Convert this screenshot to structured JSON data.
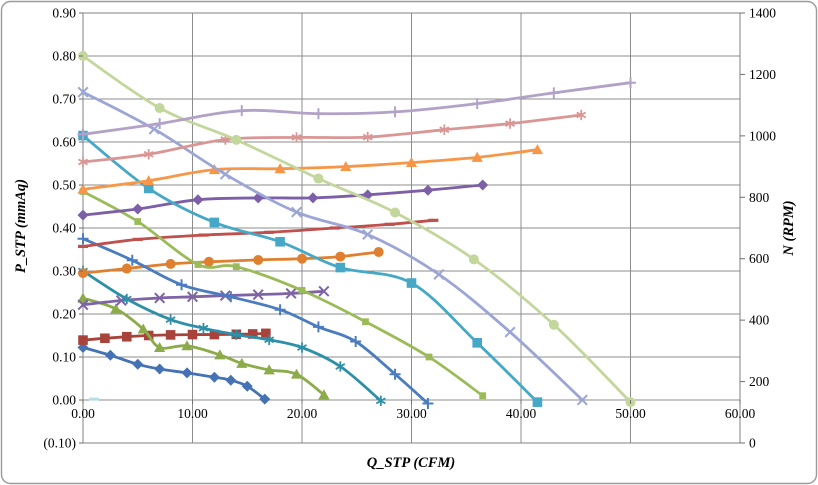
{
  "chart": {
    "background": "#FFFFFF",
    "border_color": "#9A9A9A",
    "grid_color": "#8C8C8C",
    "tick_color": "#6E6E6E",
    "font_color": "#000000",
    "negative_label_color": "#FF0000",
    "x_axis": {
      "title": "Q_STP (CFM)",
      "min": 0,
      "max": 60,
      "tick_step": 10,
      "tick_labels": [
        "0.00",
        "10.00",
        "20.00",
        "30.00",
        "40.00",
        "50.00",
        "60.00"
      ]
    },
    "y_left_axis": {
      "title": "P_STP (mmAq)",
      "min": -0.1,
      "max": 0.9,
      "tick_step": 0.1,
      "tick_labels": [
        "0.90",
        "0.80",
        "0.70",
        "0.60",
        "0.50",
        "0.40",
        "0.30",
        "0.20",
        "0.10",
        "0.00",
        "(0.10)"
      ]
    },
    "y_right_axis": {
      "title": "N (RPM)",
      "min": 0,
      "max": 1400,
      "tick_step": 200,
      "tick_labels": [
        "1400",
        "1200",
        "1000",
        "800",
        "600",
        "400",
        "200",
        "0"
      ]
    }
  },
  "chart_data": {
    "type": "line",
    "title": "",
    "x_unit": "CFM",
    "left_axis_unit": "mmAq",
    "right_axis_unit": "RPM",
    "grid": true,
    "legend": "none",
    "series": [
      {
        "id": "fan1-pressure",
        "axis": "left",
        "color": "#4472B4",
        "marker": "diamond",
        "points": [
          [
            0,
            0.122
          ],
          [
            2.5,
            0.104
          ],
          [
            5,
            0.083
          ],
          [
            7,
            0.072
          ],
          [
            9.5,
            0.063
          ],
          [
            12,
            0.053
          ],
          [
            13.5,
            0.046
          ],
          [
            15,
            0.032
          ],
          [
            16.6,
            0.002
          ]
        ]
      },
      {
        "id": "fan1-rpm",
        "axis": "right",
        "color": "#A8433C",
        "marker": "square",
        "points": [
          [
            0,
            335
          ],
          [
            2,
            341
          ],
          [
            4,
            346
          ],
          [
            6,
            350
          ],
          [
            8,
            352
          ],
          [
            10,
            353
          ],
          [
            12,
            353
          ],
          [
            14,
            354
          ],
          [
            15.5,
            355
          ],
          [
            16.7,
            357
          ]
        ]
      },
      {
        "id": "fan2-pressure",
        "axis": "left",
        "color": "#8CAB4A",
        "marker": "triangle",
        "points": [
          [
            0,
            0.237
          ],
          [
            3,
            0.212
          ],
          [
            5.5,
            0.165
          ],
          [
            7,
            0.122
          ],
          [
            9.5,
            0.126
          ],
          [
            12.5,
            0.105
          ],
          [
            14.5,
            0.085
          ],
          [
            17,
            0.07
          ],
          [
            19.5,
            0.06
          ],
          [
            22,
            0.012
          ]
        ]
      },
      {
        "id": "fan2-rpm",
        "axis": "right",
        "color": "#7E63A5",
        "marker": "x",
        "points": [
          [
            0,
            450
          ],
          [
            3.5,
            464
          ],
          [
            7,
            472
          ],
          [
            10,
            476
          ],
          [
            13,
            480
          ],
          [
            16,
            483
          ],
          [
            19,
            487
          ],
          [
            22,
            494
          ]
        ]
      },
      {
        "id": "fan3-pressure",
        "axis": "left",
        "color": "#2E8FA8",
        "marker": "asterisk",
        "points": [
          [
            0,
            0.3
          ],
          [
            4,
            0.235
          ],
          [
            8,
            0.187
          ],
          [
            11,
            0.167
          ],
          [
            14,
            0.152
          ],
          [
            17,
            0.14
          ],
          [
            20,
            0.122
          ],
          [
            23.5,
            0.078
          ],
          [
            27.2,
            -0.002
          ]
        ]
      },
      {
        "id": "fan3-rpm",
        "axis": "right",
        "color": "#DE8030",
        "marker": "circle",
        "points": [
          [
            0,
            553
          ],
          [
            4,
            568
          ],
          [
            8,
            583
          ],
          [
            11.5,
            590
          ],
          [
            16,
            596
          ],
          [
            20,
            600
          ],
          [
            23.5,
            607
          ],
          [
            27,
            622
          ]
        ]
      },
      {
        "id": "fan4-pressure",
        "axis": "left",
        "color": "#4A7CBF",
        "marker": "plus",
        "points": [
          [
            0,
            0.375
          ],
          [
            4.5,
            0.325
          ],
          [
            9,
            0.268
          ],
          [
            13.5,
            0.24
          ],
          [
            18,
            0.21
          ],
          [
            21.5,
            0.17
          ],
          [
            24.9,
            0.136
          ],
          [
            28.5,
            0.06
          ],
          [
            31.5,
            -0.008
          ]
        ]
      },
      {
        "id": "fan4-rpm",
        "axis": "right",
        "color": "#C0504D",
        "marker": "dash",
        "points": [
          [
            0,
            640
          ],
          [
            5,
            663
          ],
          [
            11,
            677
          ],
          [
            17,
            686
          ],
          [
            23,
            700
          ],
          [
            28,
            712
          ],
          [
            32,
            725
          ]
        ]
      },
      {
        "id": "fan5-pressure",
        "axis": "left",
        "color": "#9BBB59",
        "marker": "square-small",
        "points": [
          [
            0,
            0.485
          ],
          [
            5,
            0.415
          ],
          [
            10.5,
            0.315
          ],
          [
            14,
            0.31
          ],
          [
            20,
            0.255
          ],
          [
            25.8,
            0.182
          ],
          [
            31.6,
            0.1
          ],
          [
            36.5,
            0.01
          ]
        ]
      },
      {
        "id": "fan5-rpm",
        "axis": "right",
        "color": "#7D5FA8",
        "marker": "diamond",
        "points": [
          [
            0,
            742
          ],
          [
            5,
            762
          ],
          [
            10.5,
            792
          ],
          [
            16,
            798
          ],
          [
            21,
            798
          ],
          [
            26,
            808
          ],
          [
            31.5,
            823
          ],
          [
            36.5,
            840
          ]
        ]
      },
      {
        "id": "fan6-pressure",
        "axis": "left",
        "color": "#45A8C6",
        "marker": "square",
        "points": [
          [
            0,
            0.615
          ],
          [
            6,
            0.492
          ],
          [
            12,
            0.413
          ],
          [
            18,
            0.368
          ],
          [
            23.5,
            0.308
          ],
          [
            30,
            0.272
          ],
          [
            36,
            0.133
          ],
          [
            41.5,
            -0.005
          ]
        ]
      },
      {
        "id": "fan6-rpm",
        "axis": "right",
        "color": "#F79646",
        "marker": "triangle",
        "points": [
          [
            0,
            826
          ],
          [
            6,
            854
          ],
          [
            12,
            890
          ],
          [
            18,
            893
          ],
          [
            24,
            900
          ],
          [
            30,
            913
          ],
          [
            36,
            930
          ],
          [
            41.5,
            955
          ]
        ]
      },
      {
        "id": "fan7-pressure",
        "axis": "left",
        "color": "#9BA5D6",
        "marker": "x",
        "points": [
          [
            0,
            0.716
          ],
          [
            6.5,
            0.63
          ],
          [
            13,
            0.525
          ],
          [
            19.5,
            0.437
          ],
          [
            26,
            0.385
          ],
          [
            32.5,
            0.292
          ],
          [
            39,
            0.158
          ],
          [
            45.6,
            0.0
          ]
        ]
      },
      {
        "id": "fan7-rpm",
        "axis": "right",
        "color": "#D99694",
        "marker": "asterisk",
        "points": [
          [
            0,
            915
          ],
          [
            6,
            940
          ],
          [
            13,
            988
          ],
          [
            19.5,
            995
          ],
          [
            26,
            996
          ],
          [
            33,
            1020
          ],
          [
            39,
            1040
          ],
          [
            45.5,
            1068
          ]
        ]
      },
      {
        "id": "fan8-pressure",
        "axis": "left",
        "color": "#C3D69B",
        "marker": "circle",
        "points": [
          [
            0,
            0.8
          ],
          [
            7,
            0.679
          ],
          [
            14,
            0.605
          ],
          [
            21.5,
            0.515
          ],
          [
            28.5,
            0.436
          ],
          [
            35.7,
            0.327
          ],
          [
            43,
            0.175
          ],
          [
            50,
            -0.005
          ]
        ]
      },
      {
        "id": "fan8-rpm",
        "axis": "right",
        "color": "#B3A2C7",
        "marker": "plus",
        "points": [
          [
            0,
            1005
          ],
          [
            7,
            1040
          ],
          [
            14.5,
            1082
          ],
          [
            21.5,
            1072
          ],
          [
            28.5,
            1078
          ],
          [
            36,
            1105
          ],
          [
            43,
            1140
          ],
          [
            50,
            1173
          ]
        ]
      }
    ],
    "stray_point": {
      "q": 1,
      "p": 0.002,
      "color": "#B7DEE8"
    }
  }
}
